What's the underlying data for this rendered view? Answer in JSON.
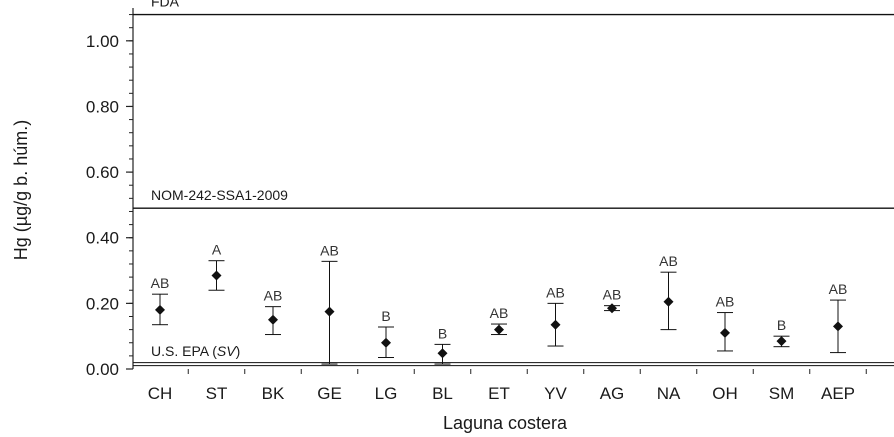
{
  "chart_data": {
    "type": "scatter",
    "xlabel": "Laguna costera",
    "ylabel": "Hg (µg/g b. húm.)",
    "ylim": [
      0,
      1.1
    ],
    "y_ticks": [
      "0.00",
      "0.20",
      "0.40",
      "0.60",
      "0.80",
      "1.00"
    ],
    "y_tick_values": [
      0,
      0.2,
      0.4,
      0.6,
      0.8,
      1.0
    ],
    "grid": false,
    "categories": [
      "CH",
      "ST",
      "BK",
      "GE",
      "LG",
      "BL",
      "ET",
      "YV",
      "AG",
      "NA",
      "OH",
      "SM",
      "AEP"
    ],
    "values": [
      0.18,
      0.285,
      0.15,
      0.175,
      0.08,
      0.048,
      0.12,
      0.135,
      0.185,
      0.205,
      0.11,
      0.085,
      0.13
    ],
    "error_low": [
      0.135,
      0.24,
      0.105,
      0.015,
      0.035,
      0.015,
      0.105,
      0.07,
      0.178,
      0.12,
      0.055,
      0.068,
      0.05
    ],
    "error_high": [
      0.228,
      0.33,
      0.19,
      0.328,
      0.128,
      0.075,
      0.137,
      0.2,
      0.193,
      0.295,
      0.172,
      0.1,
      0.21
    ],
    "significance": [
      "AB",
      "A",
      "AB",
      "AB",
      "B",
      "B",
      "AB",
      "AB",
      "AB",
      "AB",
      "AB",
      "B",
      "AB"
    ],
    "reference_lines": [
      {
        "label": "FDA",
        "value": 1.08,
        "style": "solid"
      },
      {
        "label": "NOM-242-SSA1-2009",
        "value": 0.49,
        "style": "solid"
      },
      {
        "label_prefix": "U.S. EPA (",
        "label_italic": "SV",
        "label_suffix": ")",
        "value": 0.015,
        "style": "double"
      }
    ],
    "colors": {
      "marker": "#111111",
      "line": "#111111",
      "axis": "#222222"
    }
  }
}
